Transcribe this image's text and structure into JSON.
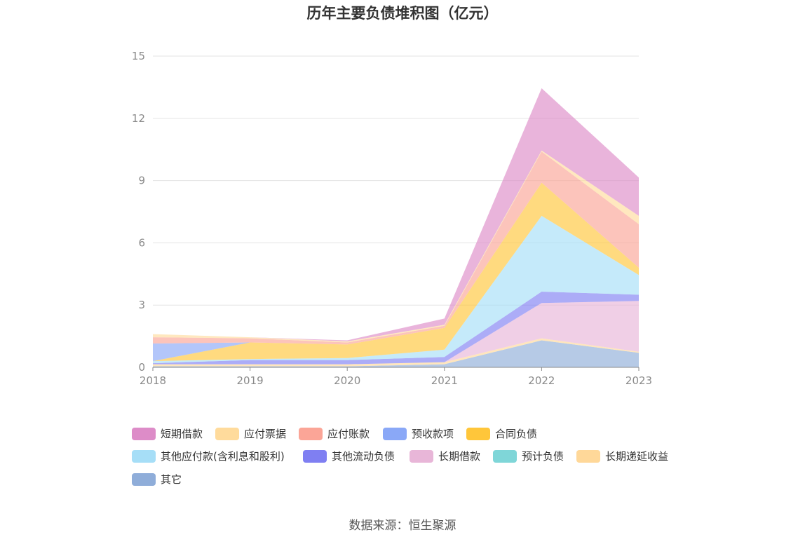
{
  "chart_data": {
    "type": "area",
    "stacked": true,
    "title": "历年主要负债堆积图（亿元）",
    "xlabel": "",
    "ylabel": "",
    "categories": [
      "2018",
      "2019",
      "2020",
      "2021",
      "2022",
      "2023"
    ],
    "y_ticks": [
      "0",
      "3",
      "6",
      "9",
      "12",
      "15"
    ],
    "ylim": [
      0,
      15
    ],
    "grid": true,
    "legend_position": "bottom",
    "series": [
      {
        "name": "其它",
        "color": "#8fadd9",
        "values": [
          0.05,
          0.05,
          0.05,
          0.15,
          1.3,
          0.7
        ]
      },
      {
        "name": "长期递延收益",
        "color": "#ffd899",
        "values": [
          0.1,
          0.1,
          0.1,
          0.1,
          0.1,
          0.05
        ]
      },
      {
        "name": "预计负债",
        "color": "#7fd6d8",
        "values": [
          0,
          0,
          0,
          0,
          0,
          0
        ]
      },
      {
        "name": "长期借款",
        "color": "#e8b6d8",
        "values": [
          0,
          0,
          0,
          0,
          1.7,
          2.45
        ]
      },
      {
        "name": "其他流动负债",
        "color": "#7f7ff2",
        "values": [
          0.05,
          0.2,
          0.2,
          0.25,
          0.55,
          0.3
        ]
      },
      {
        "name": "其他应付款(含利息和股利)",
        "color": "#a6def7",
        "values": [
          0.1,
          0.05,
          0.1,
          0.35,
          3.65,
          0.95
        ]
      },
      {
        "name": "合同负债",
        "color": "#ffc63a",
        "values": [
          0,
          0.8,
          0.65,
          1.05,
          1.6,
          0.35
        ]
      },
      {
        "name": "预收款项",
        "color": "#8aa8f7",
        "values": [
          0.85,
          0,
          0,
          0,
          0,
          0
        ]
      },
      {
        "name": "应付账款",
        "color": "#fba597",
        "values": [
          0.3,
          0.2,
          0.1,
          0.1,
          1.5,
          2.1
        ]
      },
      {
        "name": "应付票据",
        "color": "#ffdb9c",
        "values": [
          0.15,
          0.05,
          0.05,
          0.05,
          0.05,
          0.4
        ]
      },
      {
        "name": "短期借款",
        "color": "#dd8cc8",
        "values": [
          0,
          0,
          0.05,
          0.3,
          3.0,
          1.85
        ]
      }
    ],
    "legend_order": [
      "短期借款",
      "应付票据",
      "应付账款",
      "预收款项",
      "合同负债",
      "其他应付款(含利息和股利)",
      "其他流动负债",
      "长期借款",
      "预计负债",
      "长期递延收益",
      "其它"
    ]
  },
  "source": "数据来源：恒生聚源"
}
